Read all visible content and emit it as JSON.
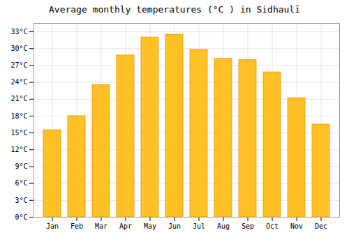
{
  "chart_data": {
    "type": "bar",
    "title": "Average monthly temperatures (°C ) in Sidhaulī",
    "categories": [
      "Jan",
      "Feb",
      "Mar",
      "Apr",
      "May",
      "Jun",
      "Jul",
      "Aug",
      "Sep",
      "Oct",
      "Nov",
      "Dec"
    ],
    "values": [
      15.5,
      18.0,
      23.5,
      28.8,
      32.0,
      32.5,
      29.8,
      28.2,
      28.0,
      25.8,
      21.2,
      16.5
    ],
    "color": "#FFC125",
    "ylim": [
      0,
      34.5
    ],
    "yticks": [
      {
        "value": 0,
        "label": "0°C"
      },
      {
        "value": 3,
        "label": "3°C"
      },
      {
        "value": 6,
        "label": "6°C"
      },
      {
        "value": 9,
        "label": "9°C"
      },
      {
        "value": 12,
        "label": "12°C"
      },
      {
        "value": 15,
        "label": "15°C"
      },
      {
        "value": 18,
        "label": "18°C"
      },
      {
        "value": 21,
        "label": "21°C"
      },
      {
        "value": 24,
        "label": "24°C"
      },
      {
        "value": 27,
        "label": "27°C"
      },
      {
        "value": 30,
        "label": "30°C"
      },
      {
        "value": 33,
        "label": "33°C"
      }
    ],
    "grid": true
  }
}
